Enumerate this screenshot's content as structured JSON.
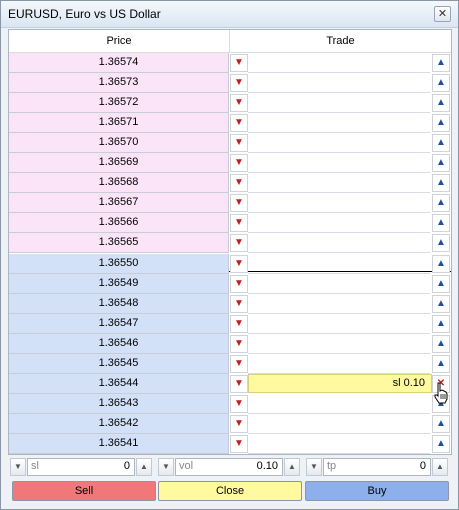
{
  "window": {
    "title": "EURUSD, Euro vs US Dollar",
    "close_glyph": "✕"
  },
  "headers": {
    "price": "Price",
    "trade": "Trade"
  },
  "icons": {
    "sell": "▼",
    "buy": "▲",
    "cancel": "✕"
  },
  "rows": [
    {
      "side": "ask",
      "price": "1.36574",
      "trade": ""
    },
    {
      "side": "ask",
      "price": "1.36573",
      "trade": ""
    },
    {
      "side": "ask",
      "price": "1.36572",
      "trade": ""
    },
    {
      "side": "ask",
      "price": "1.36571",
      "trade": ""
    },
    {
      "side": "ask",
      "price": "1.36570",
      "trade": ""
    },
    {
      "side": "ask",
      "price": "1.36569",
      "trade": ""
    },
    {
      "side": "ask",
      "price": "1.36568",
      "trade": ""
    },
    {
      "side": "ask",
      "price": "1.36567",
      "trade": ""
    },
    {
      "side": "ask",
      "price": "1.36566",
      "trade": ""
    },
    {
      "side": "ask",
      "price": "1.36565",
      "trade": ""
    },
    {
      "side": "bid",
      "price": "1.36550",
      "trade": ""
    },
    {
      "side": "bid",
      "price": "1.36549",
      "trade": ""
    },
    {
      "side": "bid",
      "price": "1.36548",
      "trade": ""
    },
    {
      "side": "bid",
      "price": "1.36547",
      "trade": ""
    },
    {
      "side": "bid",
      "price": "1.36546",
      "trade": ""
    },
    {
      "side": "bid",
      "price": "1.36545",
      "trade": ""
    },
    {
      "side": "bid",
      "price": "1.36544",
      "trade": "sl 0.10",
      "active": true
    },
    {
      "side": "bid",
      "price": "1.36543",
      "trade": ""
    },
    {
      "side": "bid",
      "price": "1.36542",
      "trade": ""
    },
    {
      "side": "bid",
      "price": "1.36541",
      "trade": ""
    }
  ],
  "inputs": {
    "sl": {
      "label": "sl",
      "value": "0"
    },
    "vol": {
      "label": "vol",
      "value": "0.10"
    },
    "tp": {
      "label": "tp",
      "value": "0"
    }
  },
  "actions": {
    "sell": "Sell",
    "close": "Close",
    "buy": "Buy"
  },
  "colors": {
    "ask_row": "#fbe4f7",
    "bid_row": "#d2e0f8",
    "sell": "#f07878",
    "close": "#fffaa0",
    "buy": "#8db0ec"
  }
}
